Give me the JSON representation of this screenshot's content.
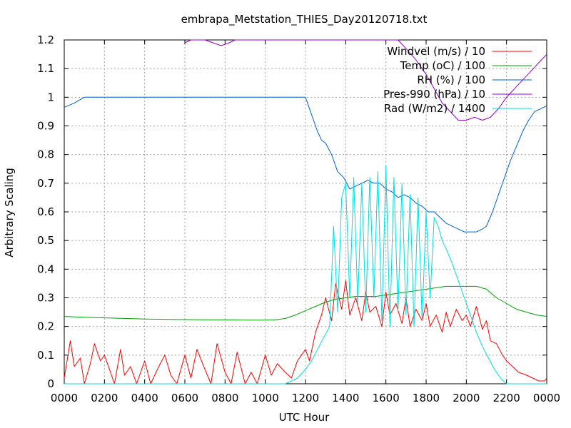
{
  "chart_data": {
    "type": "line",
    "title": "embrapa_Metstation_THIES_Day20120718.txt",
    "xlabel": "UTC Hour",
    "ylabel": "Arbitrary Scaling",
    "xlim": [
      0,
      24
    ],
    "ylim": [
      0,
      1.2
    ],
    "x_ticks": [
      "0000",
      "0200",
      "0400",
      "0600",
      "0800",
      "1000",
      "1200",
      "1400",
      "1600",
      "1800",
      "2000",
      "2200",
      "0000"
    ],
    "y_ticks": [
      "0",
      "0.1",
      "0.2",
      "0.3",
      "0.4",
      "0.5",
      "0.6",
      "0.7",
      "0.8",
      "0.9",
      "1",
      "1.1",
      "1.2"
    ],
    "grid": true,
    "legend_position": "top-right",
    "series": [
      {
        "name": "Windvel (m/s) / 10",
        "color": "#ff0000",
        "x": [
          0,
          0.3,
          0.5,
          0.8,
          1.0,
          1.3,
          1.5,
          1.8,
          2.0,
          2.3,
          2.5,
          2.8,
          3.0,
          3.3,
          3.6,
          4.0,
          4.3,
          4.7,
          5.0,
          5.3,
          5.6,
          6.0,
          6.3,
          6.6,
          7.0,
          7.3,
          7.6,
          8.0,
          8.3,
          8.6,
          9.0,
          9.3,
          9.6,
          10.0,
          10.3,
          10.6,
          11.0,
          11.3,
          11.6,
          12.0,
          12.2,
          12.5,
          12.8,
          13.0,
          13.3,
          13.5,
          13.8,
          14.0,
          14.2,
          14.5,
          14.8,
          15.0,
          15.2,
          15.5,
          15.8,
          16.0,
          16.2,
          16.5,
          16.8,
          17.0,
          17.2,
          17.5,
          17.8,
          18.0,
          18.2,
          18.5,
          18.8,
          19.0,
          19.2,
          19.5,
          19.8,
          20.0,
          20.2,
          20.5,
          20.8,
          21.0,
          21.2,
          21.5,
          21.8,
          22.0,
          22.3,
          22.6,
          23.0,
          23.3,
          23.6,
          23.9,
          24.0
        ],
        "y": [
          0.02,
          0.15,
          0.06,
          0.09,
          0.0,
          0.07,
          0.14,
          0.08,
          0.1,
          0.04,
          0.0,
          0.12,
          0.03,
          0.06,
          0.0,
          0.08,
          0.0,
          0.06,
          0.1,
          0.03,
          0.0,
          0.1,
          0.02,
          0.12,
          0.05,
          0.0,
          0.14,
          0.04,
          0.0,
          0.11,
          0.0,
          0.04,
          0.0,
          0.1,
          0.03,
          0.07,
          0.04,
          0.02,
          0.08,
          0.12,
          0.08,
          0.18,
          0.24,
          0.3,
          0.22,
          0.35,
          0.26,
          0.36,
          0.24,
          0.3,
          0.22,
          0.32,
          0.25,
          0.27,
          0.2,
          0.32,
          0.24,
          0.28,
          0.21,
          0.3,
          0.2,
          0.26,
          0.22,
          0.28,
          0.2,
          0.24,
          0.18,
          0.25,
          0.2,
          0.26,
          0.22,
          0.24,
          0.2,
          0.27,
          0.19,
          0.22,
          0.15,
          0.14,
          0.1,
          0.08,
          0.06,
          0.04,
          0.03,
          0.02,
          0.01,
          0.01,
          0.02
        ]
      },
      {
        "name": "Temp (oC) / 100",
        "color": "#00a000",
        "x": [
          0,
          1,
          2,
          3,
          4,
          5,
          6,
          7,
          8,
          9,
          10,
          10.5,
          11,
          11.5,
          12,
          12.5,
          13,
          13.5,
          14,
          14.5,
          15,
          15.5,
          16,
          16.5,
          17,
          17.5,
          18,
          18.5,
          19,
          19.5,
          20,
          20.5,
          21,
          21.5,
          22,
          22.5,
          23,
          23.5,
          24
        ],
        "y": [
          0.235,
          0.232,
          0.23,
          0.228,
          0.226,
          0.225,
          0.224,
          0.223,
          0.223,
          0.222,
          0.222,
          0.223,
          0.228,
          0.24,
          0.255,
          0.27,
          0.285,
          0.295,
          0.3,
          0.305,
          0.305,
          0.305,
          0.31,
          0.315,
          0.32,
          0.325,
          0.33,
          0.335,
          0.34,
          0.34,
          0.34,
          0.34,
          0.33,
          0.3,
          0.28,
          0.26,
          0.25,
          0.24,
          0.235
        ]
      },
      {
        "name": "RH (%) / 100",
        "color": "#0060d0",
        "x": [
          0,
          0.5,
          1.0,
          1.5,
          2,
          3,
          4,
          5,
          6,
          7,
          8,
          9,
          10,
          11,
          12.0,
          12.2,
          12.4,
          12.6,
          12.8,
          13.0,
          13.3,
          13.6,
          13.9,
          14.2,
          14.5,
          14.8,
          15.1,
          15.4,
          15.7,
          16.0,
          16.3,
          16.6,
          16.9,
          17.2,
          17.5,
          17.8,
          18.1,
          18.4,
          18.7,
          19.0,
          19.3,
          19.6,
          19.9,
          20.2,
          20.5,
          20.8,
          21.0,
          21.3,
          21.6,
          21.9,
          22.2,
          22.5,
          22.8,
          23.1,
          23.4,
          23.7,
          24.0
        ],
        "y": [
          0.965,
          0.98,
          1.0,
          1.0,
          1.0,
          1.0,
          1.0,
          1.0,
          1.0,
          1.0,
          1.0,
          1.0,
          1.0,
          1.0,
          1.0,
          0.96,
          0.92,
          0.88,
          0.85,
          0.84,
          0.8,
          0.74,
          0.72,
          0.68,
          0.69,
          0.7,
          0.71,
          0.7,
          0.7,
          0.68,
          0.67,
          0.65,
          0.66,
          0.65,
          0.63,
          0.62,
          0.6,
          0.6,
          0.58,
          0.56,
          0.55,
          0.54,
          0.53,
          0.53,
          0.53,
          0.54,
          0.55,
          0.6,
          0.66,
          0.72,
          0.78,
          0.83,
          0.88,
          0.92,
          0.95,
          0.96,
          0.97
        ]
      },
      {
        "name": "Pres-990 (hPa) / 10",
        "color": "#9400d3",
        "x": [
          6.0,
          6.3,
          6.6,
          7.0,
          7.4,
          7.8,
          8.2,
          8.5,
          16.6,
          17.0,
          17.5,
          18.0,
          18.4,
          18.8,
          19.2,
          19.6,
          20.0,
          20.4,
          20.8,
          21.2,
          21.6,
          22.0,
          22.4,
          22.8,
          23.2,
          23.6,
          24.0
        ],
        "y": [
          1.19,
          1.2,
          1.2,
          1.2,
          1.19,
          1.18,
          1.19,
          1.2,
          1.2,
          1.17,
          1.13,
          1.08,
          1.03,
          0.98,
          0.95,
          0.92,
          0.92,
          0.93,
          0.92,
          0.93,
          0.96,
          1.0,
          1.03,
          1.06,
          1.09,
          1.12,
          1.15
        ]
      },
      {
        "name": "Rad (W/m2) / 1400",
        "color": "#00dddd",
        "x": [
          0,
          11.0,
          11.3,
          11.6,
          12.0,
          12.3,
          12.6,
          12.9,
          13.2,
          13.4,
          13.6,
          13.8,
          14.0,
          14.2,
          14.4,
          14.6,
          14.8,
          15.0,
          15.2,
          15.4,
          15.6,
          15.8,
          16.0,
          16.2,
          16.4,
          16.6,
          16.8,
          17.0,
          17.2,
          17.4,
          17.6,
          17.8,
          18.0,
          18.2,
          18.4,
          18.6,
          18.8,
          19.0,
          19.3,
          19.6,
          19.9,
          20.2,
          20.5,
          20.8,
          21.1,
          21.4,
          21.7,
          22.0,
          24.0
        ],
        "y": [
          0,
          0,
          0.01,
          0.02,
          0.05,
          0.08,
          0.12,
          0.16,
          0.2,
          0.55,
          0.25,
          0.65,
          0.7,
          0.3,
          0.72,
          0.28,
          0.7,
          0.25,
          0.72,
          0.3,
          0.74,
          0.22,
          0.76,
          0.2,
          0.72,
          0.25,
          0.7,
          0.24,
          0.66,
          0.2,
          0.65,
          0.22,
          0.6,
          0.3,
          0.58,
          0.55,
          0.5,
          0.47,
          0.42,
          0.36,
          0.3,
          0.24,
          0.18,
          0.13,
          0.09,
          0.05,
          0.02,
          0.0,
          0.0
        ]
      }
    ]
  }
}
